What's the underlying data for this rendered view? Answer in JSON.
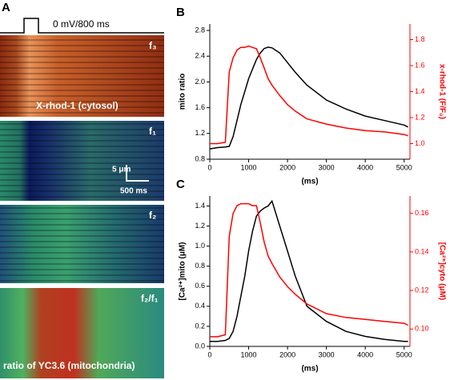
{
  "panel_a": {
    "label": "A",
    "protocol": "0 mV/800 ms",
    "images": [
      {
        "tag": "f₃",
        "caption": "X-rhod-1 (cytosol)"
      },
      {
        "tag": "f₁"
      },
      {
        "tag": "f₂"
      },
      {
        "tag": "f₂/f₁",
        "caption": "ratio of YC3.6 (mitochondria)"
      }
    ],
    "scale_y": "5 μm",
    "scale_x": "500 ms"
  },
  "chart_data": [
    {
      "type": "line",
      "label": "B",
      "xlabel": "(ms)",
      "ylabel": "mito ratio",
      "y2label": "x-rhod-1 (F/F₀)",
      "x": [
        0,
        200,
        400,
        500,
        600,
        700,
        800,
        900,
        1000,
        1100,
        1200,
        1300,
        1400,
        1500,
        1600,
        1800,
        2000,
        2200,
        2500,
        3000,
        3500,
        4000,
        4500,
        5000,
        5100
      ],
      "series": [
        {
          "color": "#000000",
          "values": [
            0.96,
            0.98,
            0.99,
            1.0,
            1.15,
            1.4,
            1.65,
            1.85,
            2.05,
            2.2,
            2.35,
            2.45,
            2.52,
            2.54,
            2.53,
            2.45,
            2.3,
            2.15,
            1.95,
            1.72,
            1.58,
            1.47,
            1.4,
            1.33,
            1.3
          ]
        },
        {
          "color": "#ff0000",
          "axis": "y2",
          "values": [
            1.0,
            1.0,
            1.01,
            1.55,
            1.66,
            1.72,
            1.74,
            1.74,
            1.75,
            1.74,
            1.73,
            1.66,
            1.58,
            1.5,
            1.45,
            1.37,
            1.3,
            1.25,
            1.19,
            1.15,
            1.12,
            1.1,
            1.09,
            1.07,
            1.06
          ]
        }
      ],
      "xlim": [
        0,
        5150
      ],
      "xticks": [
        0,
        1000,
        2000,
        3000,
        4000,
        5000
      ],
      "ylim": [
        0.8,
        2.9
      ],
      "yticks": [
        0.8,
        1.2,
        1.6,
        {
          "value": 2,
          "label": "2.0"
        },
        2.4,
        2.8
      ],
      "y2lim": [
        0.88,
        1.92
      ],
      "y2ticks": [
        {
          "value": 1,
          "label": "1.0"
        },
        1.2,
        1.4,
        1.6,
        1.8
      ]
    },
    {
      "type": "line",
      "label": "C",
      "xlabel": "(ms)",
      "ylabel": "[Ca²⁺]mito (μM)",
      "y2label": "[Ca²⁺]cyto (μM)",
      "x": [
        0,
        200,
        400,
        500,
        600,
        700,
        800,
        900,
        1000,
        1100,
        1200,
        1300,
        1400,
        1500,
        1600,
        1800,
        2000,
        2200,
        2500,
        3000,
        3500,
        4000,
        4500,
        5000,
        5100
      ],
      "series": [
        {
          "color": "#000000",
          "values": [
            0.05,
            0.05,
            0.06,
            0.08,
            0.15,
            0.3,
            0.5,
            0.7,
            0.95,
            1.15,
            1.3,
            1.35,
            1.38,
            1.4,
            1.45,
            1.2,
            0.95,
            0.7,
            0.4,
            0.25,
            0.15,
            0.1,
            0.07,
            0.05,
            0.05
          ]
        },
        {
          "color": "#ff0000",
          "axis": "y2",
          "values": [
            0.096,
            0.096,
            0.097,
            0.148,
            0.16,
            0.164,
            0.165,
            0.165,
            0.165,
            0.164,
            0.164,
            0.155,
            0.145,
            0.138,
            0.134,
            0.127,
            0.122,
            0.118,
            0.113,
            0.108,
            0.106,
            0.105,
            0.104,
            0.103,
            0.102
          ]
        }
      ],
      "xlim": [
        0,
        5150
      ],
      "xticks": [
        0,
        1000,
        2000,
        3000,
        4000,
        5000
      ],
      "ylim": [
        0,
        1.5
      ],
      "yticks": [
        {
          "value": 0,
          "label": "0.0"
        },
        0.2,
        0.4,
        0.6,
        0.8,
        {
          "value": 1,
          "label": "1.0"
        },
        1.2,
        1.4
      ],
      "y2lim": [
        0.091,
        0.169
      ],
      "y2ticks": [
        {
          "value": 0.1,
          "label": "0.10"
        },
        0.12,
        0.14,
        0.16
      ]
    }
  ]
}
